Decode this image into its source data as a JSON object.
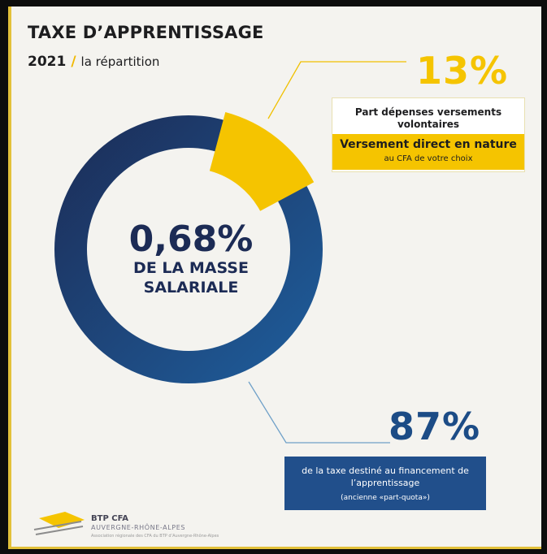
{
  "header": {
    "title": "TAXE D’APPRENTISSAGE",
    "year": "2021",
    "separator": "/",
    "subtitle": "la répartition"
  },
  "center": {
    "percentage": "0,68%",
    "line1": "DE LA MASSE",
    "line2": "SALARIALE"
  },
  "segment_voluntary": {
    "percentage": "13%",
    "share": 0.13,
    "title": "Part dépenses versements volontaires",
    "highlight": "Versement direct en nature",
    "detail": "au CFA de votre choix"
  },
  "segment_apprenticeship": {
    "percentage": "87%",
    "share": 0.87,
    "text": "de la taxe destiné au financement de l’apprentissage",
    "note": "(ancienne «part-quota»)"
  },
  "logo": {
    "name": "BTP CFA",
    "region": "AUVERGNE-RHÔNE-ALPES",
    "tagline": "Association régionale des CFA du BTP d’Auvergne-Rhône-Alpes"
  },
  "colors": {
    "blue_dark": "#1c2b55",
    "blue": "#1f5a98",
    "yellow": "#f5c400"
  }
}
